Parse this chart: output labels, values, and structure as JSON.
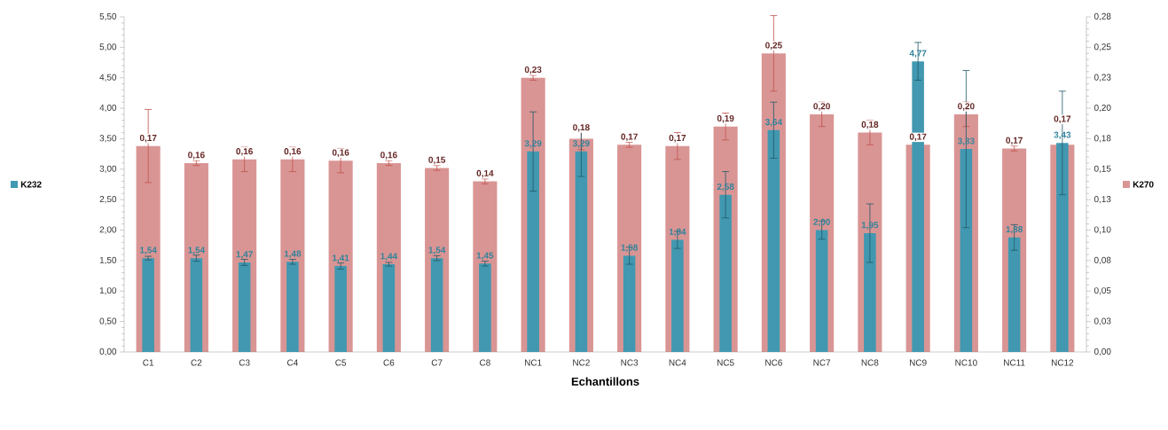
{
  "chart_data": {
    "type": "bar",
    "xlabel": "Echantillons",
    "categories": [
      "C1",
      "C2",
      "C3",
      "C4",
      "C5",
      "C6",
      "C7",
      "C8",
      "NC1",
      "NC2",
      "NC3",
      "NC4",
      "NC5",
      "NC6",
      "NC7",
      "NC8",
      "NC9",
      "NC10",
      "NC11",
      "NC12"
    ],
    "series": [
      {
        "name": "K270",
        "color": "#d99594",
        "axis": "y2",
        "values": [
          0.169,
          0.155,
          0.158,
          0.158,
          0.157,
          0.155,
          0.151,
          0.14,
          0.225,
          0.175,
          0.17,
          0.169,
          0.185,
          0.245,
          0.195,
          0.18,
          0.17,
          0.195,
          0.167,
          0.17
        ],
        "errors": [
          0.03,
          0.002,
          0.01,
          0.01,
          0.01,
          0.002,
          0.002,
          0.002,
          0.002,
          0.009,
          0.002,
          0.011,
          0.011,
          0.031,
          0.01,
          0.01,
          null,
          0.01,
          0.002,
          null
        ],
        "value_labels": [
          "0,17",
          "0,16",
          "0,16",
          "0,16",
          "0,16",
          "0,16",
          "0,15",
          "0,14",
          "0,23",
          "0,18",
          "0,17",
          "0,17",
          "0,19",
          "0,25",
          "0,20",
          "0,18",
          "0,17",
          "0,20",
          "0,17",
          "0,17"
        ]
      },
      {
        "name": "K232",
        "color": "#4198b0",
        "values": [
          1.54,
          1.54,
          1.47,
          1.48,
          1.41,
          1.44,
          1.54,
          1.45,
          3.29,
          3.29,
          1.58,
          1.84,
          2.58,
          3.64,
          2.0,
          1.95,
          4.77,
          3.33,
          1.88,
          3.43
        ],
        "errors": [
          0.03,
          0.05,
          0.05,
          0.04,
          0.05,
          0.03,
          0.04,
          0.04,
          0.65,
          0.41,
          0.14,
          0.14,
          0.38,
          0.46,
          0.15,
          0.48,
          0.31,
          1.29,
          0.21,
          0.85
        ],
        "value_labels": [
          "1,54",
          "1,54",
          "1,47",
          "1,48",
          "1,41",
          "1,44",
          "1,54",
          "1,45",
          "3,29",
          "3,29",
          "1,58",
          "1,84",
          "2,58",
          "3,64",
          "2,00",
          "1,95",
          "4,77",
          "3,33",
          "1,88",
          "3,43"
        ]
      }
    ],
    "ylim": [
      0,
      5.5
    ],
    "yticks": [
      {
        "value": 0,
        "label": "0,00"
      },
      {
        "value": 0.5,
        "label": "0,50"
      },
      {
        "value": 1,
        "label": "1,00"
      },
      {
        "value": 1.5,
        "label": "1,50"
      },
      {
        "value": 2,
        "label": "2,00"
      },
      {
        "value": 2.5,
        "label": "2,50"
      },
      {
        "value": 3,
        "label": "3,00"
      },
      {
        "value": 3.5,
        "label": "3,50"
      },
      {
        "value": 4,
        "label": "4,00"
      },
      {
        "value": 4.5,
        "label": "4,50"
      },
      {
        "value": 5,
        "label": "5,00"
      },
      {
        "value": 5.5,
        "label": "5,50"
      }
    ],
    "y2lim": [
      0,
      0.275
    ],
    "y2ticks": [
      {
        "value": 0,
        "label": "0,00"
      },
      {
        "value": 0.025,
        "label": "0,03"
      },
      {
        "value": 0.05,
        "label": "0,05"
      },
      {
        "value": 0.075,
        "label": "0,08"
      },
      {
        "value": 0.1,
        "label": "0,10"
      },
      {
        "value": 0.125,
        "label": "0,13"
      },
      {
        "value": 0.15,
        "label": "0,15"
      },
      {
        "value": 0.175,
        "label": "0,18"
      },
      {
        "value": 0.2,
        "label": "0,20"
      },
      {
        "value": 0.225,
        "label": "0,23"
      },
      {
        "value": 0.25,
        "label": "0,25"
      },
      {
        "value": 0.275,
        "label": "0,28"
      }
    ],
    "legend": "left",
    "grid": false
  }
}
